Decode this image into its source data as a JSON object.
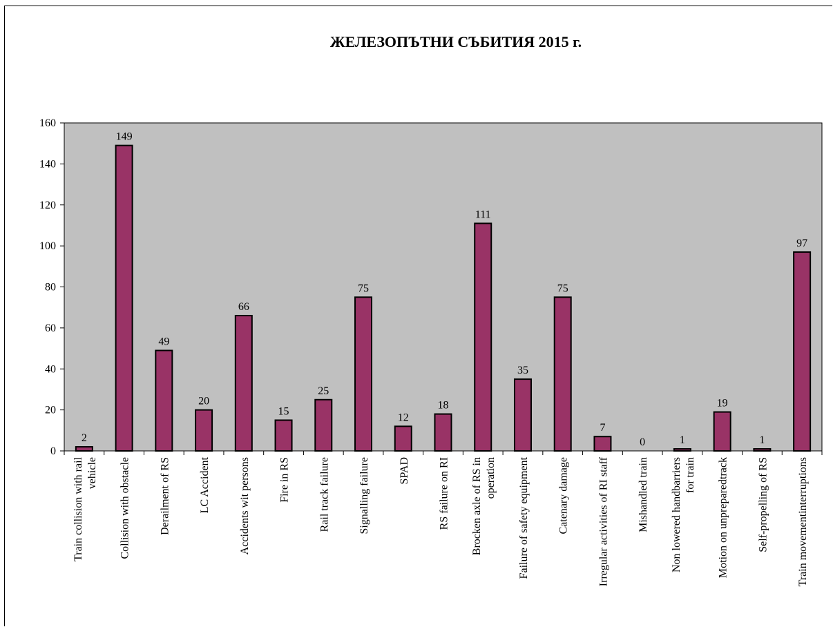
{
  "chart_data": {
    "type": "bar",
    "title": "ЖЕЛЕЗОПЪТНИ СЪБИТИЯ 2015 г.",
    "xlabel": "",
    "ylabel": "",
    "ylim": [
      0,
      160
    ],
    "yticks": [
      0,
      20,
      40,
      60,
      80,
      100,
      120,
      140,
      160
    ],
    "grid": false,
    "legend": "none",
    "colors": {
      "bar": "#993366",
      "plot_area": "#c0c0c0",
      "axis": "#000000"
    },
    "categories": [
      [
        "Train collision with rail",
        "vehicle"
      ],
      [
        "Collision with obstacle"
      ],
      [
        "Derailment of RS"
      ],
      [
        "LC Accident"
      ],
      [
        "Accidents wit persons"
      ],
      [
        "Fire in RS"
      ],
      [
        "Rail track failure"
      ],
      [
        "Signalling failure"
      ],
      [
        "SPAD"
      ],
      [
        "RS failure on RI"
      ],
      [
        "Brocken axle of RS in",
        "operation"
      ],
      [
        "Failure of safety equipment"
      ],
      [
        "Catenary damage"
      ],
      [
        "Irregular activities of RI staff"
      ],
      [
        "Mishandled train"
      ],
      [
        "Non lowered handbarriers",
        "for train"
      ],
      [
        "Motion on unpreparedtrack"
      ],
      [
        "Self-propelling of RS"
      ],
      [
        "Train movementinterruptions"
      ]
    ],
    "values": [
      2,
      149,
      49,
      20,
      66,
      15,
      25,
      75,
      12,
      18,
      111,
      35,
      75,
      7,
      0,
      1,
      19,
      1,
      97
    ]
  }
}
